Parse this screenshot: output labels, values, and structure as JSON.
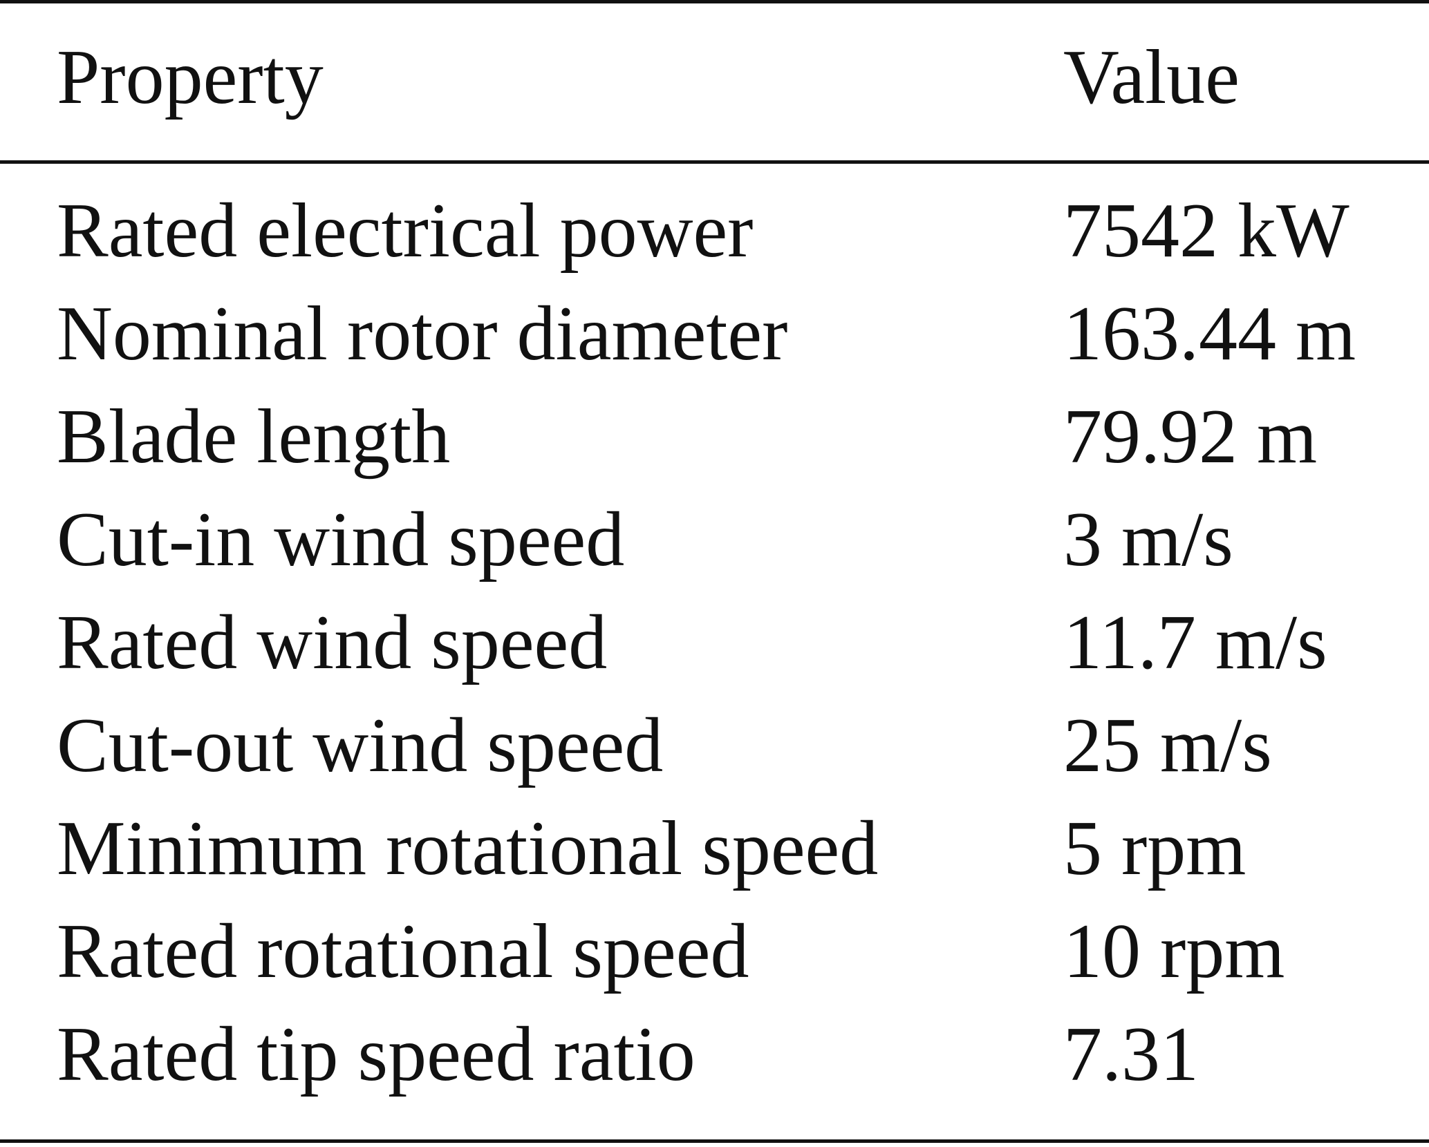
{
  "table": {
    "headers": {
      "property": "Property",
      "value": "Value"
    },
    "rows": [
      {
        "property": "Rated electrical power",
        "value": "7542 kW"
      },
      {
        "property": "Nominal rotor diameter",
        "value": "163.44 m"
      },
      {
        "property": "Blade length",
        "value": "79.92 m"
      },
      {
        "property": "Cut-in wind speed",
        "value": "3 m/s"
      },
      {
        "property": "Rated wind speed",
        "value": "11.7 m/s"
      },
      {
        "property": "Cut-out wind speed",
        "value": "25 m/s"
      },
      {
        "property": "Minimum rotational speed",
        "value": "5 rpm"
      },
      {
        "property": "Rated rotational speed",
        "value": "10 rpm"
      },
      {
        "property": "Rated tip speed ratio",
        "value": "7.31"
      }
    ]
  }
}
